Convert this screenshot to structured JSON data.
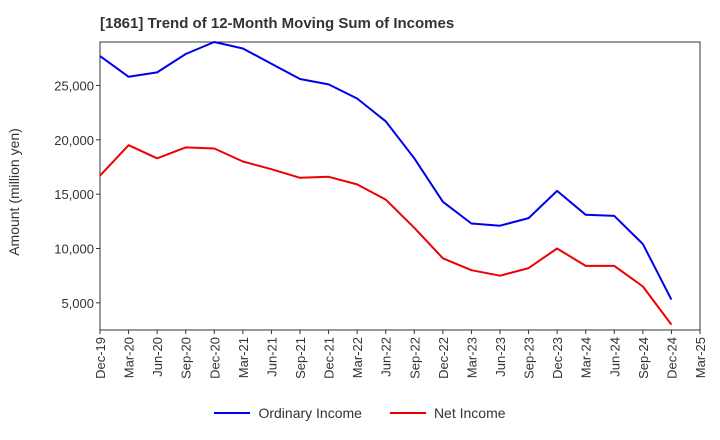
{
  "chart_data": {
    "type": "line",
    "title": "[1861]  Trend of 12-Month Moving Sum of Incomes",
    "xlabel": "",
    "ylabel": "Amount (million yen)",
    "categories": [
      "Dec-19",
      "Mar-20",
      "Jun-20",
      "Sep-20",
      "Dec-20",
      "Mar-21",
      "Jun-21",
      "Sep-21",
      "Dec-21",
      "Mar-22",
      "Jun-22",
      "Sep-22",
      "Dec-22",
      "Mar-23",
      "Jun-23",
      "Sep-23",
      "Dec-23",
      "Mar-24",
      "Jun-24",
      "Sep-24",
      "Dec-24",
      "Mar-25"
    ],
    "ylim": [
      2500,
      29000
    ],
    "yticks": [
      5000,
      10000,
      15000,
      20000,
      25000
    ],
    "ytick_labels": [
      "5,000",
      "10,000",
      "15,000",
      "20,000",
      "25,000"
    ],
    "grid": true,
    "legend_position": "bottom-center",
    "series": [
      {
        "name": "Ordinary Income",
        "color": "#0000ee",
        "values": [
          27700,
          25800,
          26200,
          27900,
          29000,
          28400,
          27000,
          25600,
          25100,
          23800,
          21700,
          18300,
          14300,
          12300,
          12100,
          12800,
          15300,
          13100,
          13000,
          10400,
          5300,
          null
        ]
      },
      {
        "name": "Net Income",
        "color": "#ee0000",
        "values": [
          16700,
          19500,
          18300,
          19300,
          19200,
          18000,
          17300,
          16500,
          16600,
          15900,
          14500,
          11900,
          9100,
          8000,
          7500,
          8200,
          10000,
          8400,
          8400,
          6500,
          3000,
          null
        ]
      }
    ]
  }
}
